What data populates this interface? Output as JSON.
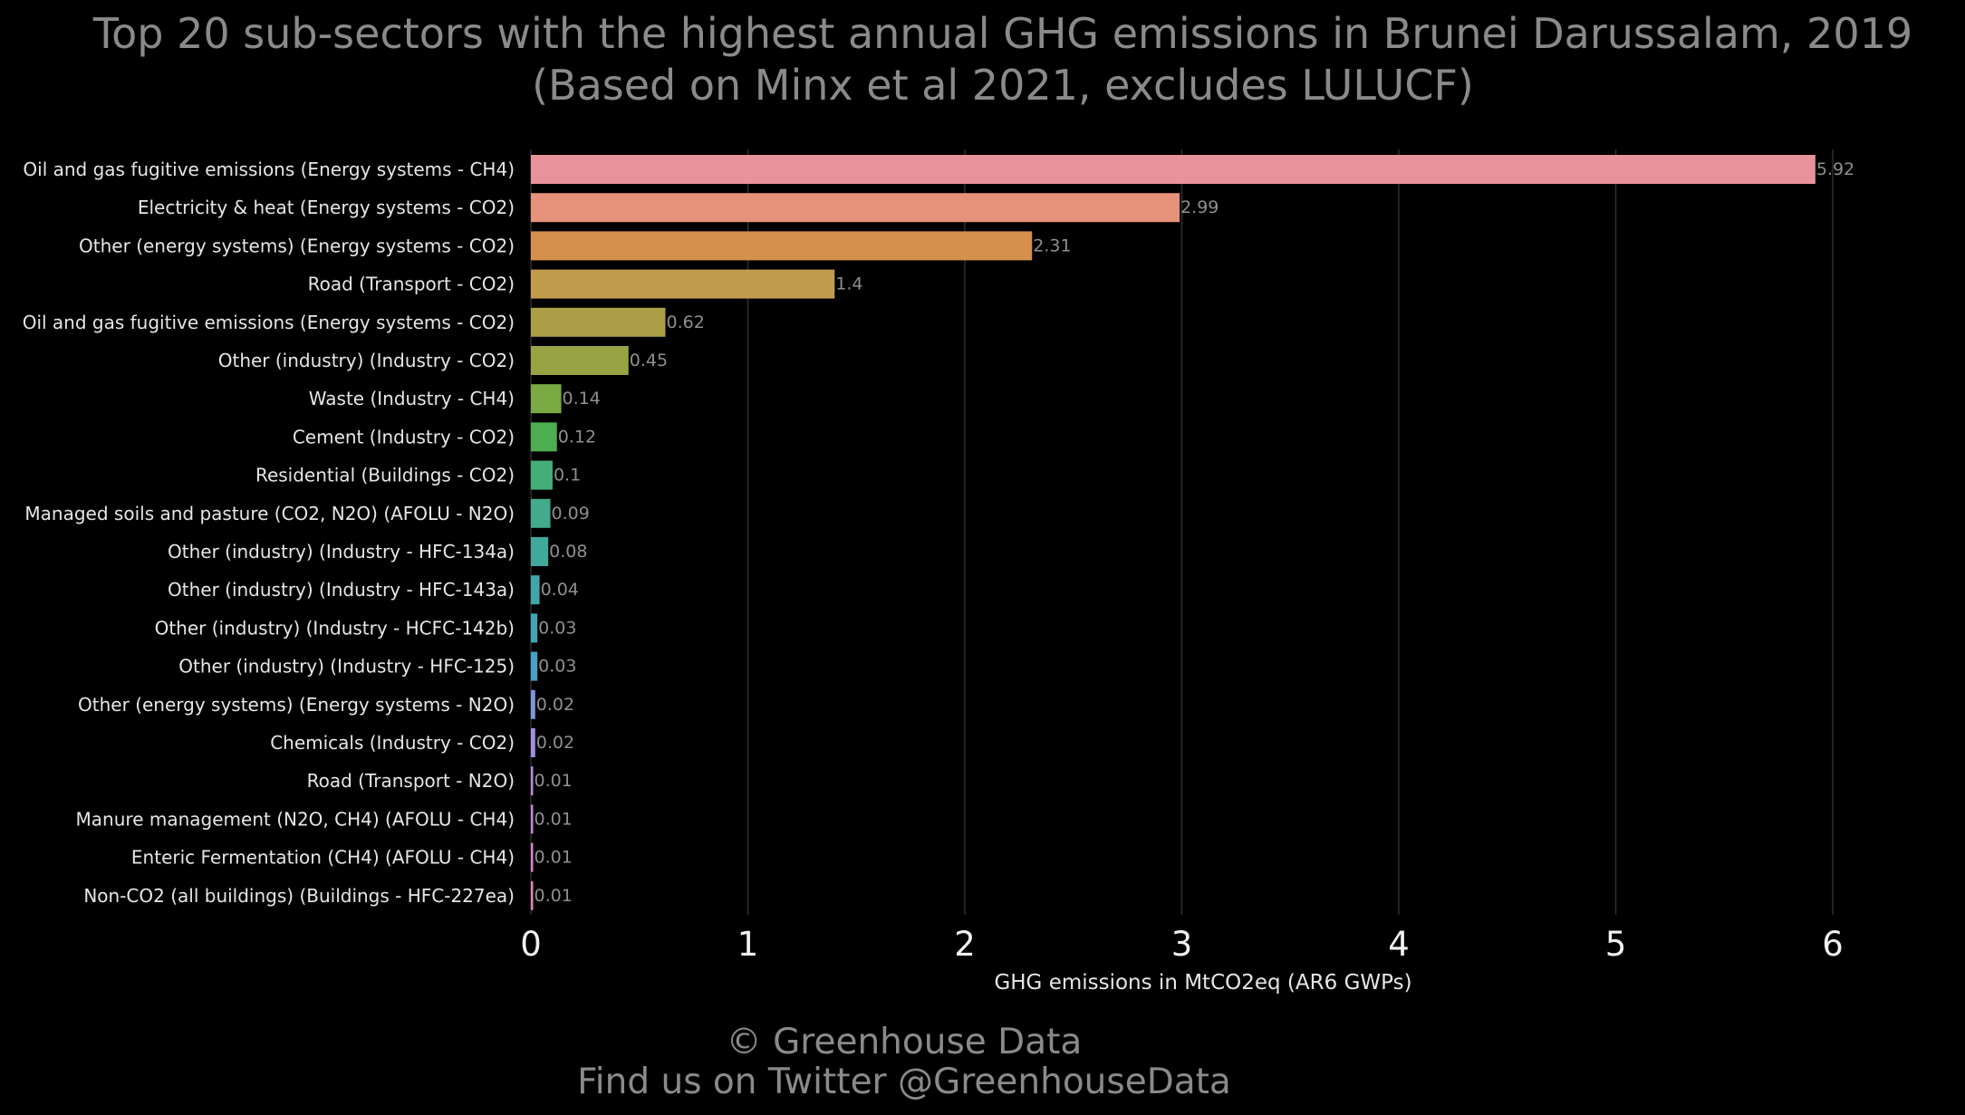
{
  "chart_data": {
    "type": "bar",
    "orientation": "horizontal",
    "title": "Top 20 sub-sectors with the highest annual GHG emissions in Brunei Darussalam, 2019",
    "subtitle": "(Based on Minx et al 2021, excludes LULUCF)",
    "xlabel": "GHG emissions in MtCO2eq (AR6 GWPs)",
    "ylabel": "",
    "xlim": [
      0,
      6.2
    ],
    "xticks": [
      0,
      1,
      2,
      3,
      4,
      5,
      6
    ],
    "grid": "vertical",
    "legend": "none",
    "categories": [
      "Oil and gas fugitive emissions (Energy systems - CH4)",
      "Electricity & heat (Energy systems - CO2)",
      "Other (energy systems) (Energy systems - CO2)",
      "Road (Transport - CO2)",
      "Oil and gas fugitive emissions (Energy systems - CO2)",
      "Other (industry) (Industry - CO2)",
      "Waste (Industry - CH4)",
      "Cement (Industry - CO2)",
      "Residential (Buildings - CO2)",
      "Managed soils and pasture (CO2, N2O) (AFOLU - N2O)",
      "Other (industry) (Industry - HFC-134a)",
      "Other (industry) (Industry - HFC-143a)",
      "Other (industry) (Industry - HCFC-142b)",
      "Other (industry) (Industry - HFC-125)",
      "Other (energy systems) (Energy systems - N2O)",
      "Chemicals (Industry - CO2)",
      "Road (Transport - N2O)",
      "Manure management (N2O, CH4) (AFOLU - CH4)",
      "Enteric Fermentation (CH4) (AFOLU - CH4)",
      "Non-CO2 (all buildings) (Buildings - HFC-227ea)"
    ],
    "values": [
      5.92,
      2.99,
      2.31,
      1.4,
      0.62,
      0.45,
      0.14,
      0.12,
      0.1,
      0.09,
      0.08,
      0.04,
      0.03,
      0.03,
      0.02,
      0.02,
      0.01,
      0.01,
      0.01,
      0.01
    ],
    "value_labels": [
      "5.92",
      "2.99",
      "2.31",
      "1.4",
      "0.62",
      "0.45",
      "0.14",
      "0.12",
      "0.1",
      "0.09",
      "0.08",
      "0.04",
      "0.03",
      "0.03",
      "0.02",
      "0.02",
      "0.01",
      "0.01",
      "0.01",
      "0.01"
    ],
    "colors": [
      "#e8929c",
      "#e6927a",
      "#d4904c",
      "#c19c4c",
      "#ab9e46",
      "#98a443",
      "#7aaa43",
      "#4cae50",
      "#45ad7a",
      "#43aa8d",
      "#41a99c",
      "#40a6aa",
      "#41a4b8",
      "#46a0c8",
      "#7e97dc",
      "#a58fe0",
      "#bb88df",
      "#cc83d8",
      "#d982c8",
      "#e083b6"
    ]
  },
  "footer": {
    "copyright": "© Greenhouse Data",
    "twitter": "Find us on Twitter @GreenhouseData"
  },
  "colors": {
    "background": "#000000",
    "title": "#8a8a8a",
    "grid": "#2e2e2e"
  }
}
